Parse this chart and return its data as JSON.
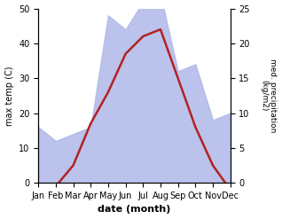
{
  "months": [
    "Jan",
    "Feb",
    "Mar",
    "Apr",
    "May",
    "Jun",
    "Jul",
    "Aug",
    "Sep",
    "Oct",
    "Nov",
    "Dec"
  ],
  "temp": [
    -1,
    -1,
    5,
    17,
    26,
    37,
    42,
    44,
    30,
    16,
    5,
    -2
  ],
  "precip": [
    8,
    6,
    7,
    8,
    24,
    22,
    26,
    27,
    16,
    17,
    9,
    10
  ],
  "temp_color": "#b22222",
  "precip_fill_color": "#b0b8e8",
  "ylim_temp": [
    0,
    50
  ],
  "ylim_precip": [
    0,
    25
  ],
  "xlabel": "date (month)",
  "ylabel_left": "max temp (C)",
  "ylabel_right": "med. precipitation\n(kg/m2)",
  "bg_color": "#ffffff",
  "temp_linewidth": 1.8,
  "figsize": [
    3.18,
    2.47
  ],
  "dpi": 100
}
